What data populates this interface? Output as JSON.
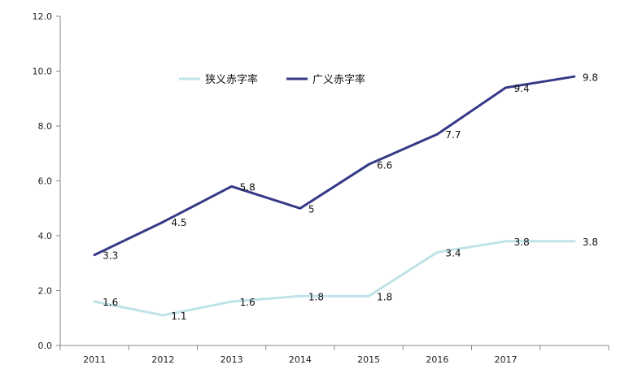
{
  "chart_data": {
    "type": "line",
    "categories": [
      "2011",
      "2012",
      "2013",
      "2014",
      "2015",
      "2016",
      "2017",
      ""
    ],
    "series": [
      {
        "name": "狭义赤字率",
        "color": "#bfe3e8",
        "values": [
          1.6,
          1.1,
          1.6,
          1.8,
          1.8,
          3.4,
          3.8,
          3.8
        ],
        "labels": [
          "1.6",
          "1.1",
          "1.6",
          "1.8",
          "1.8",
          "3.4",
          "3.8",
          "3.8"
        ]
      },
      {
        "name": "广义赤字率",
        "color": "#353a86",
        "values": [
          3.3,
          4.5,
          5.8,
          5.0,
          6.6,
          7.7,
          9.4,
          9.8
        ],
        "labels": [
          "3.3",
          "4.5",
          "5.8",
          "5",
          "6.6",
          "7.7",
          "9.4",
          "9.8"
        ]
      }
    ],
    "y_ticks": [
      "0.0",
      "2.0",
      "4.0",
      "6.0",
      "8.0",
      "10.0",
      "12.0"
    ],
    "ylim": [
      0,
      12
    ],
    "grid": false,
    "legend_position": "top-center"
  }
}
